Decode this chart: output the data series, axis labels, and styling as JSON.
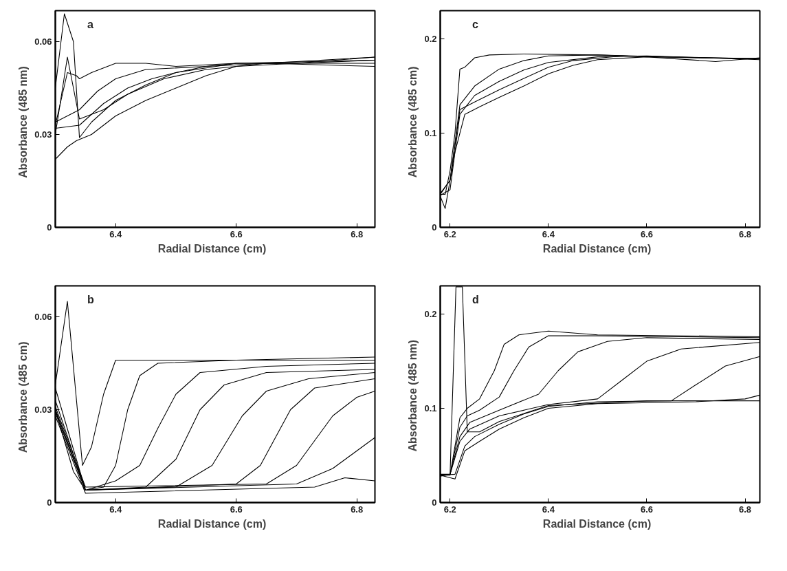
{
  "chart_data": [
    {
      "type": "line",
      "xlabel": "Radial Distance   (cm)",
      "ylabel": "Absorbance   (485 nm)",
      "annotations": [
        "a"
      ],
      "xlim": [
        6.3,
        6.83
      ],
      "ylim": [
        0,
        0.07
      ],
      "xticks": [
        6.4,
        6.6,
        6.8
      ],
      "yticks": [
        0,
        0.03,
        0.06
      ],
      "series": [
        {
          "color": "#000000",
          "x": [
            6.3,
            6.32,
            6.335,
            6.34,
            6.36,
            6.4,
            6.45,
            6.5,
            6.6,
            6.7,
            6.83
          ],
          "values": [
            0.033,
            0.05,
            0.049,
            0.048,
            0.05,
            0.053,
            0.053,
            0.052,
            0.053,
            0.053,
            0.054
          ]
        },
        {
          "color": "#000000",
          "x": [
            6.3,
            6.34,
            6.38,
            6.42,
            6.46,
            6.5,
            6.55,
            6.6,
            6.7,
            6.83
          ],
          "values": [
            0.032,
            0.033,
            0.04,
            0.045,
            0.048,
            0.05,
            0.052,
            0.053,
            0.053,
            0.055
          ]
        },
        {
          "color": "#000000",
          "x": [
            6.3,
            6.32,
            6.335,
            6.36,
            6.4,
            6.45,
            6.5,
            6.55,
            6.6,
            6.7,
            6.83
          ],
          "values": [
            0.022,
            0.026,
            0.028,
            0.03,
            0.036,
            0.041,
            0.045,
            0.049,
            0.052,
            0.053,
            0.053
          ]
        },
        {
          "color": "#000000",
          "x": [
            6.3,
            6.315,
            6.33,
            6.34,
            6.36,
            6.4,
            6.45,
            6.5,
            6.6,
            6.83
          ],
          "values": [
            0.045,
            0.069,
            0.06,
            0.029,
            0.034,
            0.041,
            0.046,
            0.05,
            0.053,
            0.054
          ]
        },
        {
          "color": "#000000",
          "x": [
            6.3,
            6.32,
            6.34,
            6.38,
            6.42,
            6.48,
            6.55,
            6.65,
            6.83
          ],
          "values": [
            0.03,
            0.055,
            0.035,
            0.038,
            0.043,
            0.048,
            0.051,
            0.053,
            0.052
          ]
        },
        {
          "color": "#000000",
          "x": [
            6.3,
            6.34,
            6.37,
            6.4,
            6.45,
            6.55,
            6.65,
            6.83
          ],
          "values": [
            0.034,
            0.038,
            0.044,
            0.048,
            0.051,
            0.052,
            0.053,
            0.055
          ]
        }
      ]
    },
    {
      "type": "line",
      "xlabel": "Radial Distance   (cm)",
      "ylabel": "Absorbance   (485 cm)",
      "annotations": [
        "c"
      ],
      "xlim": [
        6.18,
        6.83
      ],
      "ylim": [
        0,
        0.23
      ],
      "xticks": [
        6.2,
        6.4,
        6.6,
        6.8
      ],
      "yticks": [
        0,
        0.1,
        0.2
      ],
      "series": [
        {
          "color": "#000000",
          "x": [
            6.18,
            6.19,
            6.2,
            6.21,
            6.22,
            6.23,
            6.25,
            6.28,
            6.35,
            6.5,
            6.7,
            6.83
          ],
          "values": [
            0.035,
            0.035,
            0.06,
            0.1,
            0.168,
            0.17,
            0.18,
            0.183,
            0.184,
            0.183,
            0.18,
            0.179
          ]
        },
        {
          "color": "#000000",
          "x": [
            6.18,
            6.2,
            6.22,
            6.25,
            6.3,
            6.35,
            6.4,
            6.5,
            6.6,
            6.83
          ],
          "values": [
            0.035,
            0.05,
            0.13,
            0.15,
            0.168,
            0.177,
            0.182,
            0.183,
            0.181,
            0.179
          ]
        },
        {
          "color": "#000000",
          "x": [
            6.18,
            6.2,
            6.22,
            6.25,
            6.3,
            6.35,
            6.4,
            6.5,
            6.6,
            6.83
          ],
          "values": [
            0.034,
            0.04,
            0.12,
            0.14,
            0.155,
            0.167,
            0.175,
            0.181,
            0.182,
            0.178
          ]
        },
        {
          "color": "#000000",
          "x": [
            6.18,
            6.2,
            6.22,
            6.25,
            6.3,
            6.35,
            6.4,
            6.45,
            6.55,
            6.83
          ],
          "values": [
            0.036,
            0.05,
            0.125,
            0.133,
            0.146,
            0.158,
            0.17,
            0.177,
            0.182,
            0.179
          ]
        },
        {
          "color": "#000000",
          "x": [
            6.18,
            6.19,
            6.21,
            6.23,
            6.26,
            6.3,
            6.35,
            6.4,
            6.45,
            6.5,
            6.6,
            6.74,
            6.83
          ],
          "values": [
            0.033,
            0.02,
            0.08,
            0.12,
            0.128,
            0.138,
            0.15,
            0.163,
            0.172,
            0.178,
            0.181,
            0.176,
            0.18
          ]
        }
      ]
    },
    {
      "type": "line",
      "xlabel": "Radial Distance   (cm)",
      "ylabel": "Absorbance   (485 cm)",
      "annotations": [
        "b"
      ],
      "xlim": [
        6.3,
        6.83
      ],
      "ylim": [
        0,
        0.07
      ],
      "xticks": [
        6.4,
        6.6,
        6.8
      ],
      "yticks": [
        0,
        0.03,
        0.06
      ],
      "series": [
        {
          "color": "#000000",
          "x": [
            6.3,
            6.32,
            6.345,
            6.36,
            6.38,
            6.4,
            6.45,
            6.6,
            6.83
          ],
          "values": [
            0.038,
            0.065,
            0.012,
            0.018,
            0.035,
            0.046,
            0.046,
            0.046,
            0.047
          ]
        },
        {
          "color": "#000000",
          "x": [
            6.3,
            6.33,
            6.35,
            6.38,
            6.4,
            6.42,
            6.44,
            6.47,
            6.6,
            6.83
          ],
          "values": [
            0.03,
            0.01,
            0.004,
            0.005,
            0.012,
            0.03,
            0.041,
            0.045,
            0.046,
            0.046
          ]
        },
        {
          "color": "#000000",
          "x": [
            6.3,
            6.35,
            6.4,
            6.44,
            6.47,
            6.5,
            6.54,
            6.65,
            6.83
          ],
          "values": [
            0.03,
            0.004,
            0.007,
            0.012,
            0.024,
            0.035,
            0.042,
            0.044,
            0.045
          ]
        },
        {
          "color": "#000000",
          "x": [
            6.3,
            6.35,
            6.45,
            6.5,
            6.54,
            6.58,
            6.65,
            6.83
          ],
          "values": [
            0.029,
            0.004,
            0.005,
            0.014,
            0.03,
            0.038,
            0.042,
            0.043
          ]
        },
        {
          "color": "#000000",
          "x": [
            6.3,
            6.35,
            6.5,
            6.56,
            6.61,
            6.65,
            6.72,
            6.83
          ],
          "values": [
            0.037,
            0.004,
            0.005,
            0.012,
            0.028,
            0.036,
            0.04,
            0.042
          ]
        },
        {
          "color": "#000000",
          "x": [
            6.3,
            6.35,
            6.6,
            6.64,
            6.69,
            6.73,
            6.83
          ],
          "values": [
            0.033,
            0.004,
            0.006,
            0.012,
            0.03,
            0.037,
            0.04
          ]
        },
        {
          "color": "#000000",
          "x": [
            6.3,
            6.35,
            6.65,
            6.7,
            6.76,
            6.8,
            6.83
          ],
          "values": [
            0.031,
            0.005,
            0.006,
            0.012,
            0.028,
            0.034,
            0.036
          ]
        },
        {
          "color": "#000000",
          "x": [
            6.3,
            6.35,
            6.7,
            6.76,
            6.83
          ],
          "values": [
            0.03,
            0.004,
            0.006,
            0.011,
            0.021
          ]
        },
        {
          "color": "#000000",
          "x": [
            6.3,
            6.35,
            6.73,
            6.78,
            6.83
          ],
          "values": [
            0.028,
            0.003,
            0.005,
            0.008,
            0.007
          ]
        }
      ]
    },
    {
      "type": "line",
      "xlabel": "Radial Distance   (cm)",
      "ylabel": "Absorbance  (485 nm)",
      "annotations": [
        "d"
      ],
      "xlim": [
        6.18,
        6.83
      ],
      "ylim": [
        0,
        0.23
      ],
      "xticks": [
        6.2,
        6.4,
        6.6,
        6.8
      ],
      "yticks": [
        0,
        0.1,
        0.2
      ],
      "series": [
        {
          "color": "#000000",
          "x": [
            6.18,
            6.2,
            6.21,
            6.22,
            6.235,
            6.26,
            6.29,
            6.31,
            6.34,
            6.4,
            6.5,
            6.83
          ],
          "values": [
            0.029,
            0.029,
            0.06,
            0.09,
            0.1,
            0.11,
            0.14,
            0.168,
            0.178,
            0.182,
            0.178,
            0.176
          ]
        },
        {
          "color": "#000000",
          "x": [
            6.18,
            6.2,
            6.22,
            6.235,
            6.26,
            6.3,
            6.33,
            6.36,
            6.4,
            6.5,
            6.83
          ],
          "values": [
            0.029,
            0.03,
            0.08,
            0.092,
            0.098,
            0.112,
            0.14,
            0.165,
            0.177,
            0.177,
            0.175
          ]
        },
        {
          "color": "#000000",
          "x": [
            6.18,
            6.2,
            6.22,
            6.24,
            6.3,
            6.38,
            6.42,
            6.46,
            6.52,
            6.6,
            6.83
          ],
          "values": [
            0.029,
            0.03,
            0.07,
            0.085,
            0.098,
            0.115,
            0.14,
            0.16,
            0.171,
            0.175,
            0.173
          ]
        },
        {
          "color": "#000000",
          "x": [
            6.18,
            6.2,
            6.22,
            6.24,
            6.3,
            6.4,
            6.5,
            6.55,
            6.6,
            6.67,
            6.83
          ],
          "values": [
            0.028,
            0.03,
            0.065,
            0.078,
            0.092,
            0.104,
            0.11,
            0.13,
            0.15,
            0.163,
            0.17
          ]
        },
        {
          "color": "#000000",
          "x": [
            6.18,
            6.21,
            6.23,
            6.25,
            6.3,
            6.35,
            6.4,
            6.5,
            6.65,
            6.7,
            6.76,
            6.83
          ],
          "values": [
            0.029,
            0.03,
            0.06,
            0.07,
            0.083,
            0.094,
            0.102,
            0.107,
            0.108,
            0.125,
            0.145,
            0.155
          ]
        },
        {
          "color": "#000000",
          "x": [
            6.18,
            6.21,
            6.23,
            6.26,
            6.3,
            6.35,
            6.4,
            6.5,
            6.7,
            6.8,
            6.83
          ],
          "values": [
            0.029,
            0.025,
            0.055,
            0.065,
            0.078,
            0.09,
            0.1,
            0.105,
            0.107,
            0.11,
            0.114
          ]
        },
        {
          "color": "#000000",
          "x": [
            6.18,
            6.2,
            6.212,
            6.225,
            6.235,
            6.26,
            6.3,
            6.4,
            6.6,
            6.83
          ],
          "values": [
            0.03,
            0.03,
            0.229,
            0.229,
            0.075,
            0.075,
            0.086,
            0.103,
            0.108,
            0.108
          ]
        }
      ]
    }
  ]
}
